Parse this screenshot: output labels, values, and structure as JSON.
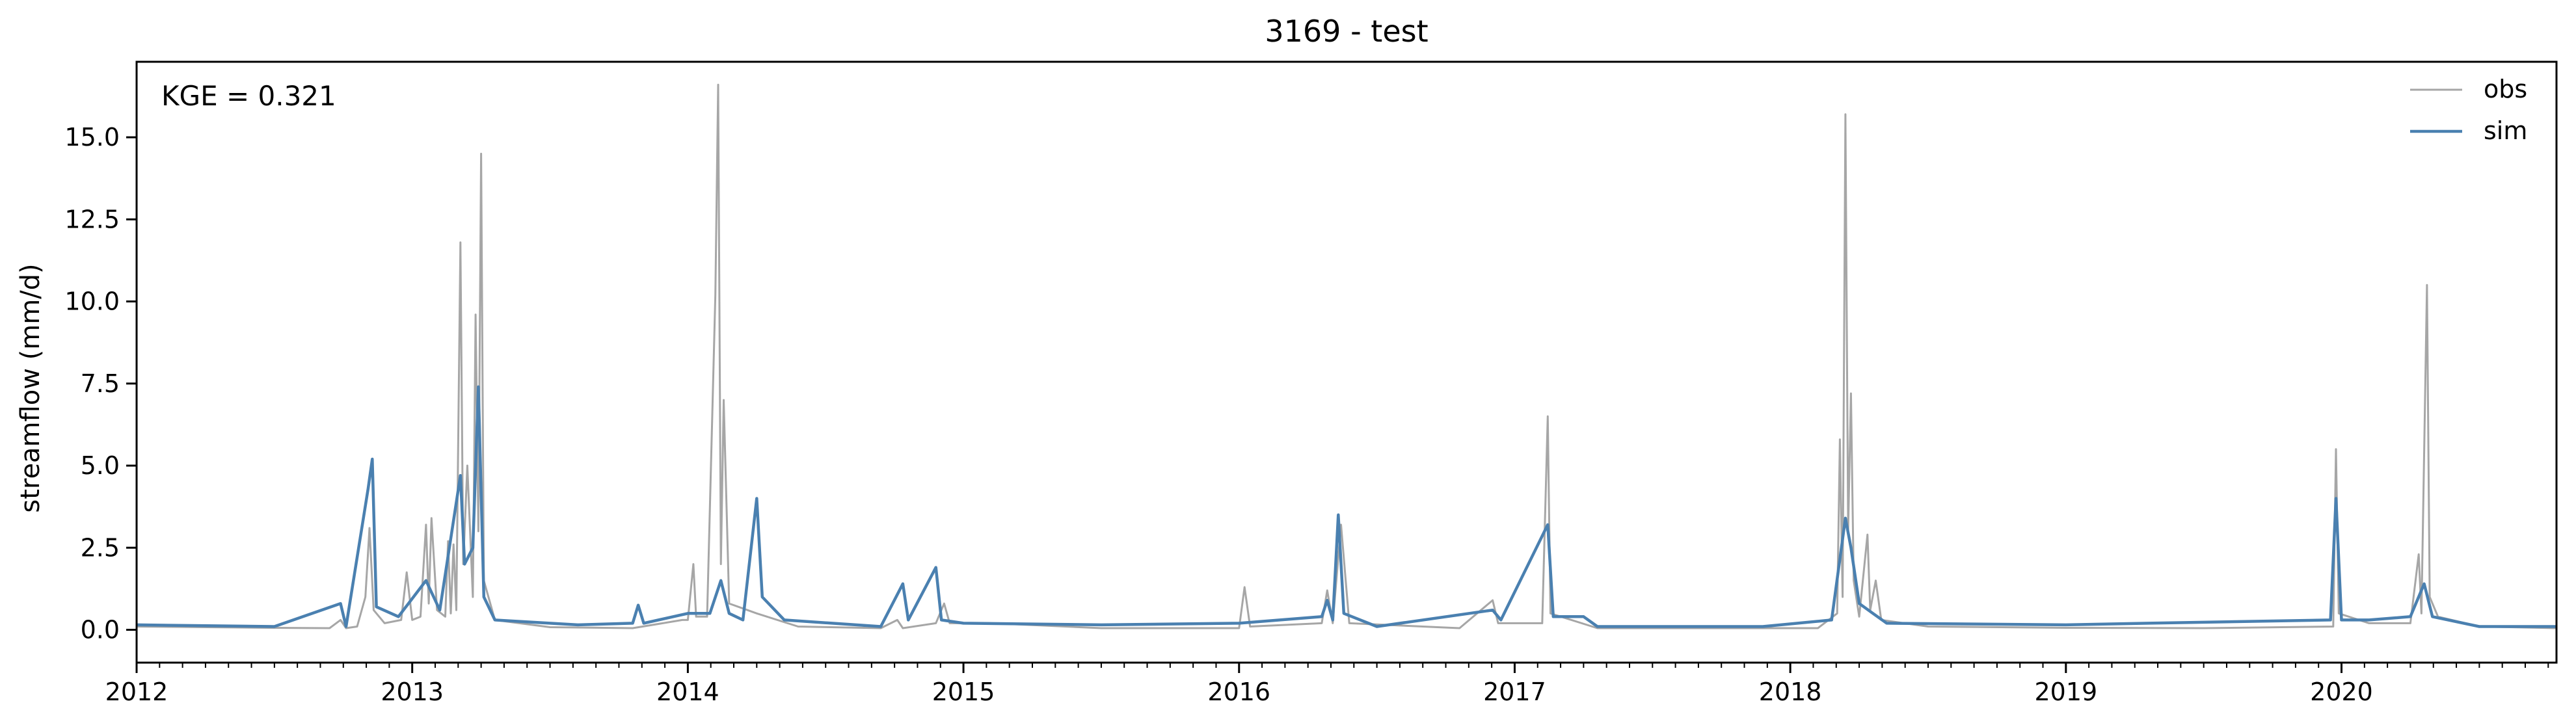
{
  "chart_data": {
    "type": "line",
    "title": "3169 - test",
    "xlabel": "",
    "ylabel": "streamflow (mm/d)",
    "annotation": "KGE = 0.321",
    "xlim": [
      2012.0,
      2020.78
    ],
    "ylim": [
      -1.0,
      17.3
    ],
    "x_ticks": [
      {
        "value": 2012,
        "label": "2012"
      },
      {
        "value": 2013,
        "label": "2013"
      },
      {
        "value": 2014,
        "label": "2014"
      },
      {
        "value": 2015,
        "label": "2015"
      },
      {
        "value": 2016,
        "label": "2016"
      },
      {
        "value": 2017,
        "label": "2017"
      },
      {
        "value": 2018,
        "label": "2018"
      },
      {
        "value": 2019,
        "label": "2019"
      },
      {
        "value": 2020,
        "label": "2020"
      }
    ],
    "y_ticks": [
      {
        "value": 0.0,
        "label": "0.0"
      },
      {
        "value": 2.5,
        "label": "2.5"
      },
      {
        "value": 5.0,
        "label": "5.0"
      },
      {
        "value": 7.5,
        "label": "7.5"
      },
      {
        "value": 10.0,
        "label": "10.0"
      },
      {
        "value": 12.5,
        "label": "12.5"
      },
      {
        "value": 15.0,
        "label": "15.0"
      }
    ],
    "grid": false,
    "legend_position": "top-right",
    "series": [
      {
        "name": "obs",
        "color": "#a6a6a6",
        "points": [
          [
            2012.0,
            0.1
          ],
          [
            2012.5,
            0.06
          ],
          [
            2012.7,
            0.05
          ],
          [
            2012.74,
            0.3
          ],
          [
            2012.76,
            0.05
          ],
          [
            2012.8,
            0.1
          ],
          [
            2012.83,
            1.0
          ],
          [
            2012.845,
            3.1
          ],
          [
            2012.86,
            0.6
          ],
          [
            2012.9,
            0.2
          ],
          [
            2012.96,
            0.3
          ],
          [
            2012.98,
            1.75
          ],
          [
            2013.0,
            0.3
          ],
          [
            2013.03,
            0.4
          ],
          [
            2013.05,
            3.2
          ],
          [
            2013.06,
            0.8
          ],
          [
            2013.07,
            3.4
          ],
          [
            2013.09,
            0.6
          ],
          [
            2013.12,
            0.4
          ],
          [
            2013.13,
            2.7
          ],
          [
            2013.14,
            0.5
          ],
          [
            2013.15,
            2.6
          ],
          [
            2013.16,
            0.6
          ],
          [
            2013.175,
            11.8
          ],
          [
            2013.185,
            2.0
          ],
          [
            2013.2,
            5.0
          ],
          [
            2013.22,
            1.0
          ],
          [
            2013.23,
            9.6
          ],
          [
            2013.24,
            3.0
          ],
          [
            2013.25,
            14.5
          ],
          [
            2013.26,
            1.5
          ],
          [
            2013.3,
            0.3
          ],
          [
            2013.5,
            0.08
          ],
          [
            2013.8,
            0.05
          ],
          [
            2013.98,
            0.3
          ],
          [
            2014.0,
            0.3
          ],
          [
            2014.02,
            2.0
          ],
          [
            2014.03,
            0.4
          ],
          [
            2014.07,
            0.4
          ],
          [
            2014.1,
            10.2
          ],
          [
            2014.11,
            16.6
          ],
          [
            2014.12,
            2.0
          ],
          [
            2014.13,
            7.0
          ],
          [
            2014.15,
            0.8
          ],
          [
            2014.25,
            0.5
          ],
          [
            2014.4,
            0.1
          ],
          [
            2014.7,
            0.05
          ],
          [
            2014.76,
            0.3
          ],
          [
            2014.78,
            0.05
          ],
          [
            2014.9,
            0.2
          ],
          [
            2014.93,
            0.8
          ],
          [
            2014.95,
            0.2
          ],
          [
            2015.1,
            0.2
          ],
          [
            2015.5,
            0.05
          ],
          [
            2016.0,
            0.05
          ],
          [
            2016.02,
            1.3
          ],
          [
            2016.04,
            0.1
          ],
          [
            2016.3,
            0.2
          ],
          [
            2016.32,
            1.2
          ],
          [
            2016.34,
            0.2
          ],
          [
            2016.37,
            3.2
          ],
          [
            2016.4,
            0.2
          ],
          [
            2016.8,
            0.05
          ],
          [
            2016.92,
            0.9
          ],
          [
            2016.94,
            0.2
          ],
          [
            2017.1,
            0.2
          ],
          [
            2017.12,
            6.5
          ],
          [
            2017.13,
            0.5
          ],
          [
            2017.3,
            0.05
          ],
          [
            2017.9,
            0.05
          ],
          [
            2018.1,
            0.05
          ],
          [
            2018.17,
            0.5
          ],
          [
            2018.18,
            5.8
          ],
          [
            2018.19,
            1.0
          ],
          [
            2018.2,
            15.7
          ],
          [
            2018.21,
            3.0
          ],
          [
            2018.22,
            7.2
          ],
          [
            2018.23,
            1.5
          ],
          [
            2018.25,
            0.4
          ],
          [
            2018.28,
            2.9
          ],
          [
            2018.29,
            0.6
          ],
          [
            2018.31,
            1.5
          ],
          [
            2018.33,
            0.3
          ],
          [
            2018.5,
            0.1
          ],
          [
            2019.0,
            0.06
          ],
          [
            2019.5,
            0.05
          ],
          [
            2019.97,
            0.1
          ],
          [
            2019.98,
            5.5
          ],
          [
            2019.99,
            0.5
          ],
          [
            2020.1,
            0.2
          ],
          [
            2020.25,
            0.2
          ],
          [
            2020.28,
            2.3
          ],
          [
            2020.29,
            0.5
          ],
          [
            2020.31,
            10.5
          ],
          [
            2020.32,
            1.0
          ],
          [
            2020.35,
            0.4
          ],
          [
            2020.5,
            0.1
          ],
          [
            2020.78,
            0.05
          ]
        ]
      },
      {
        "name": "sim",
        "color": "#4a80b0",
        "points": [
          [
            2012.0,
            0.15
          ],
          [
            2012.5,
            0.1
          ],
          [
            2012.74,
            0.8
          ],
          [
            2012.76,
            0.1
          ],
          [
            2012.84,
            4.3
          ],
          [
            2012.855,
            5.2
          ],
          [
            2012.87,
            0.7
          ],
          [
            2012.95,
            0.4
          ],
          [
            2013.05,
            1.5
          ],
          [
            2013.1,
            0.6
          ],
          [
            2013.175,
            4.7
          ],
          [
            2013.19,
            2.0
          ],
          [
            2013.22,
            2.5
          ],
          [
            2013.24,
            7.4
          ],
          [
            2013.26,
            1.0
          ],
          [
            2013.3,
            0.3
          ],
          [
            2013.6,
            0.15
          ],
          [
            2013.8,
            0.2
          ],
          [
            2013.82,
            0.75
          ],
          [
            2013.84,
            0.2
          ],
          [
            2014.0,
            0.5
          ],
          [
            2014.08,
            0.5
          ],
          [
            2014.12,
            1.5
          ],
          [
            2014.15,
            0.5
          ],
          [
            2014.2,
            0.3
          ],
          [
            2014.25,
            4.0
          ],
          [
            2014.27,
            1.0
          ],
          [
            2014.35,
            0.3
          ],
          [
            2014.7,
            0.1
          ],
          [
            2014.78,
            1.4
          ],
          [
            2014.8,
            0.3
          ],
          [
            2014.9,
            1.9
          ],
          [
            2014.92,
            0.3
          ],
          [
            2015.0,
            0.2
          ],
          [
            2015.5,
            0.15
          ],
          [
            2016.0,
            0.2
          ],
          [
            2016.3,
            0.4
          ],
          [
            2016.32,
            0.9
          ],
          [
            2016.34,
            0.3
          ],
          [
            2016.36,
            3.5
          ],
          [
            2016.38,
            0.5
          ],
          [
            2016.5,
            0.1
          ],
          [
            2016.92,
            0.6
          ],
          [
            2016.95,
            0.3
          ],
          [
            2017.12,
            3.2
          ],
          [
            2017.14,
            0.4
          ],
          [
            2017.25,
            0.4
          ],
          [
            2017.3,
            0.1
          ],
          [
            2017.9,
            0.1
          ],
          [
            2018.15,
            0.3
          ],
          [
            2018.2,
            3.4
          ],
          [
            2018.22,
            2.5
          ],
          [
            2018.25,
            0.8
          ],
          [
            2018.3,
            0.5
          ],
          [
            2018.35,
            0.2
          ],
          [
            2019.0,
            0.15
          ],
          [
            2019.3,
            0.2
          ],
          [
            2019.96,
            0.3
          ],
          [
            2019.98,
            4.0
          ],
          [
            2020.0,
            0.3
          ],
          [
            2020.1,
            0.3
          ],
          [
            2020.25,
            0.4
          ],
          [
            2020.3,
            1.4
          ],
          [
            2020.33,
            0.4
          ],
          [
            2020.5,
            0.1
          ],
          [
            2020.78,
            0.1
          ]
        ]
      }
    ]
  }
}
